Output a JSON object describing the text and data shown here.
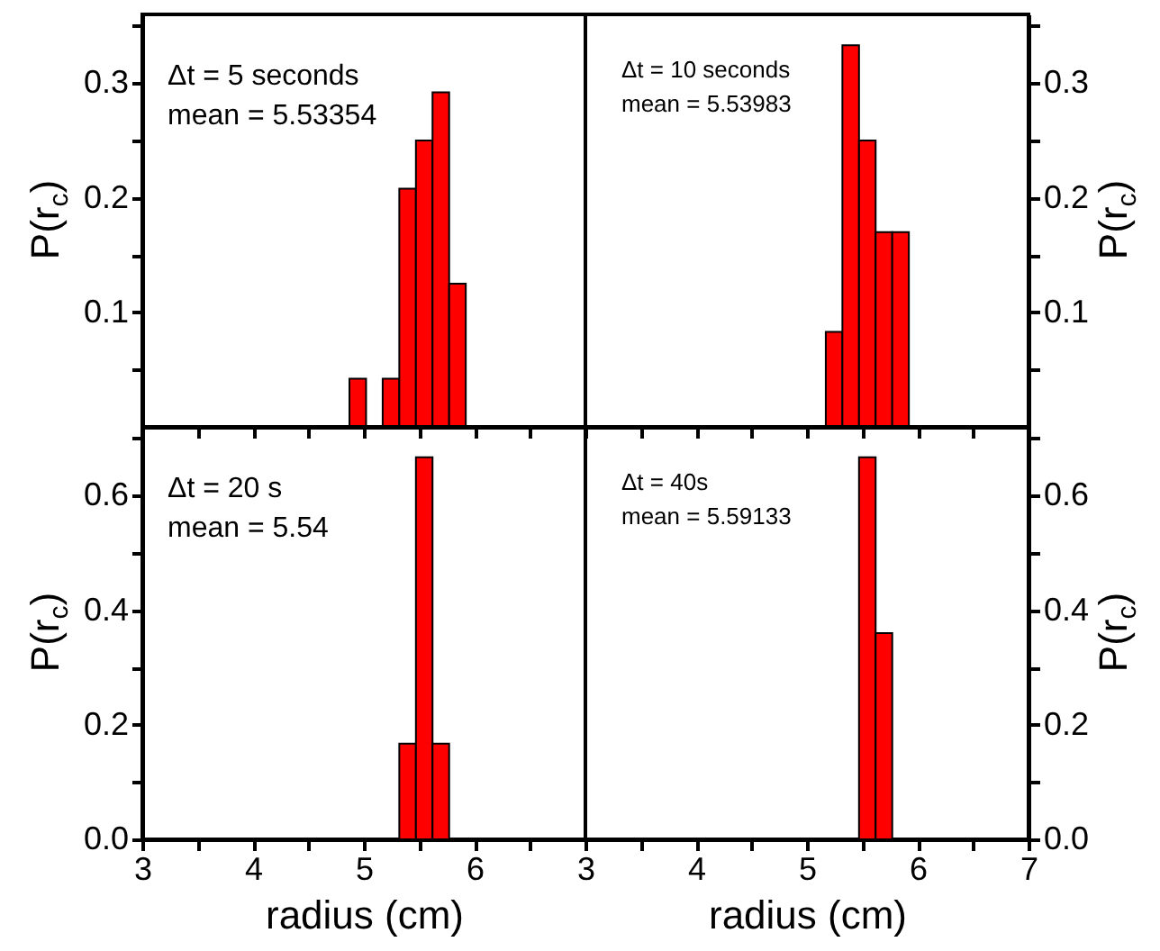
{
  "chart_data": [
    {
      "type": "histogram",
      "bins": [
        4.87,
        5.02,
        5.17,
        5.32,
        5.47,
        5.62,
        5.77,
        5.92
      ],
      "values": [
        0.042,
        null,
        0.042,
        0.208,
        0.25,
        0.292,
        0.125
      ],
      "color": "#ff0000",
      "xlim": [
        3,
        7
      ],
      "xticks": [
        3,
        {
          "value": 3.5,
          "label": null
        },
        4,
        {
          "value": 4.5,
          "label": null
        },
        5,
        {
          "value": 5.5,
          "label": null
        },
        6,
        {
          "value": 6.5,
          "label": null
        },
        7
      ],
      "ylim": [
        0,
        0.36
      ],
      "yticks": [
        {
          "value": 0.05,
          "label": null
        },
        0.1,
        {
          "value": 0.15,
          "label": null
        },
        0.2,
        {
          "value": 0.25,
          "label": null
        },
        0.3,
        {
          "value": 0.35,
          "label": null
        }
      ],
      "ylabel": "P(r$_{c}$)",
      "annotations": [
        "Δt = 5 seconds",
        "mean = 5.53354"
      ],
      "tick_labels": "y"
    },
    {
      "type": "histogram",
      "bins": [
        5.17,
        5.32,
        5.47,
        5.62,
        5.77,
        5.92
      ],
      "values": [
        0.083,
        0.333,
        0.25,
        0.17,
        0.17
      ],
      "color": "#ff0000",
      "xlim": [
        3,
        7
      ],
      "xticks": [
        3,
        {
          "value": 3.5,
          "label": null
        },
        4,
        {
          "value": 4.5,
          "label": null
        },
        5,
        {
          "value": 5.5,
          "label": null
        },
        6,
        {
          "value": 6.5,
          "label": null
        },
        7
      ],
      "ylim": [
        0,
        0.36
      ],
      "yticks": [
        {
          "value": 0.05,
          "label": null
        },
        0.1,
        {
          "value": 0.15,
          "label": null
        },
        0.2,
        {
          "value": 0.25,
          "label": null
        },
        0.3,
        {
          "value": 0.35,
          "label": null
        }
      ],
      "ylabel": "P(r$_{c}$)",
      "annotations": [
        "Δt = 10 seconds",
        "mean = 5.53983"
      ],
      "tick_labels": "y"
    },
    {
      "type": "histogram",
      "bins": [
        5.32,
        5.47,
        5.62,
        5.77
      ],
      "values": [
        0.167,
        0.667,
        0.167
      ],
      "color": "#ff0000",
      "xlim": [
        3,
        7
      ],
      "xticks": [
        3,
        {
          "value": 3.5,
          "label": null
        },
        4,
        {
          "value": 4.5,
          "label": null
        },
        5,
        {
          "value": 5.5,
          "label": null
        },
        6,
        {
          "value": 6.5,
          "label": null
        },
        {
          "value": 7,
          "label": null
        }
      ],
      "ylim": [
        0,
        0.72
      ],
      "yticks": [
        {
          "value": 0,
          "label": "0.0"
        },
        {
          "value": 0.1,
          "label": null
        },
        0.2,
        {
          "value": 0.3,
          "label": null
        },
        0.4,
        {
          "value": 0.5,
          "label": null
        },
        0.6,
        {
          "value": 0.7,
          "label": null
        }
      ],
      "xlabel": "radius (cm)",
      "ylabel": "P(r$_{c}$)",
      "annotations": [
        "Δt = 20 s",
        "mean = 5.54"
      ]
    },
    {
      "type": "histogram",
      "bins": [
        5.47,
        5.62,
        5.77
      ],
      "values": [
        0.667,
        0.36
      ],
      "color": "#ff0000",
      "xlim": [
        3,
        7
      ],
      "xticks": [
        3,
        {
          "value": 3.5,
          "label": null
        },
        4,
        {
          "value": 4.5,
          "label": null
        },
        5,
        {
          "value": 5.5,
          "label": null
        },
        6,
        {
          "value": 6.5,
          "label": null
        },
        7
      ],
      "ylim": [
        0,
        0.72
      ],
      "yticks": [
        {
          "value": 0,
          "label": "0.0"
        },
        {
          "value": 0.1,
          "label": null
        },
        0.2,
        {
          "value": 0.3,
          "label": null
        },
        0.4,
        {
          "value": 0.5,
          "label": null
        },
        0.6,
        {
          "value": 0.7,
          "label": null
        }
      ],
      "xlabel": "radius (cm)",
      "ylabel": "P(r$_{c}$)",
      "annotations": [
        "Δt = 40s",
        "mean = 5.59133"
      ]
    }
  ]
}
